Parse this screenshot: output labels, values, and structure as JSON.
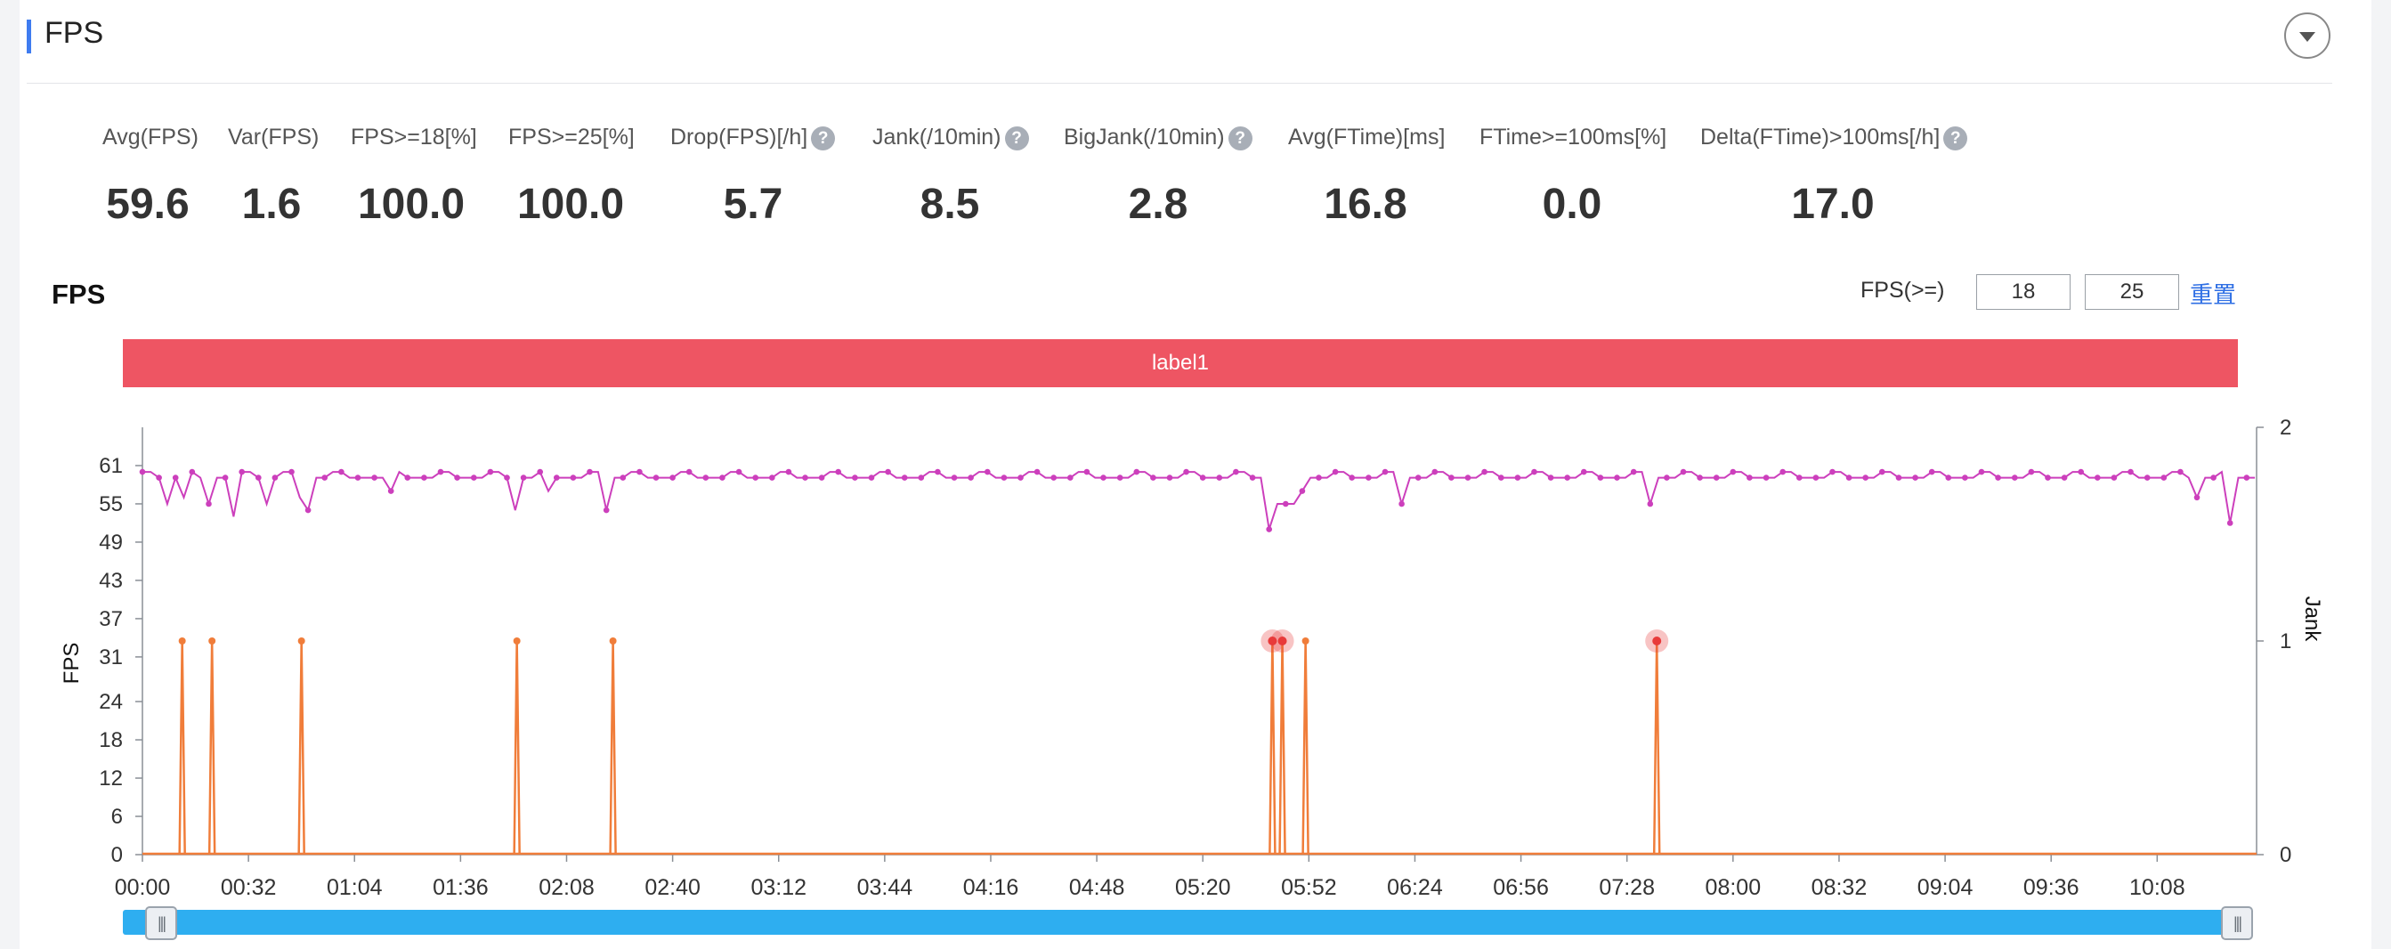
{
  "section": {
    "title": "FPS"
  },
  "stats": [
    {
      "label": "Avg(FPS)",
      "value": "59.6",
      "help": false
    },
    {
      "label": "Var(FPS)",
      "value": "1.6",
      "help": false
    },
    {
      "label": "FPS>=18[%]",
      "value": "100.0",
      "help": false
    },
    {
      "label": "FPS>=25[%]",
      "value": "100.0",
      "help": false
    },
    {
      "label": "Drop(FPS)[/h]",
      "value": "5.7",
      "help": true
    },
    {
      "label": "Jank(/10min)",
      "value": "8.5",
      "help": true
    },
    {
      "label": "BigJank(/10min)",
      "value": "2.8",
      "help": true
    },
    {
      "label": "Avg(FTime)[ms]",
      "value": "16.8",
      "help": false
    },
    {
      "label": "FTime>=100ms[%]",
      "value": "0.0",
      "help": false
    },
    {
      "label": "Delta(FTime)>100ms[/h]",
      "value": "17.0",
      "help": true
    }
  ],
  "chart_controls": {
    "title": "FPS",
    "threshold_label": "FPS(>=)",
    "threshold_1": "18",
    "threshold_2": "25",
    "reset_label": "重置"
  },
  "label_band": {
    "text": "label1",
    "color": "#ee5563"
  },
  "chart_data": {
    "type": "line",
    "x_ticks": [
      "00:00",
      "00:32",
      "01:04",
      "01:36",
      "02:08",
      "02:40",
      "03:12",
      "03:44",
      "04:16",
      "04:48",
      "05:20",
      "05:52",
      "06:24",
      "06:56",
      "07:28",
      "08:00",
      "08:32",
      "09:04",
      "09:36",
      "10:08"
    ],
    "y_left_label": "FPS",
    "y_left_ticks": [
      "0",
      "6",
      "12",
      "18",
      "24",
      "31",
      "37",
      "43",
      "49",
      "55",
      "61"
    ],
    "y_right_label": "Jank",
    "y_right_ticks": [
      "0",
      "1",
      "2"
    ],
    "x_range": [
      "00:00",
      "10:38"
    ],
    "y_left_range": [
      0,
      67
    ],
    "y_right_range": [
      0,
      2
    ],
    "series": [
      {
        "name": "FPS",
        "color": "#cc3fbc",
        "style": "line-with-points",
        "baseline": 60,
        "dips": [
          {
            "t": "00:08",
            "v": 55
          },
          {
            "t": "00:13",
            "v": 56
          },
          {
            "t": "00:20",
            "v": 55
          },
          {
            "t": "00:28",
            "v": 53
          },
          {
            "t": "00:38",
            "v": 55
          },
          {
            "t": "00:48",
            "v": 56
          },
          {
            "t": "00:50",
            "v": 54
          },
          {
            "t": "01:15",
            "v": 57
          },
          {
            "t": "01:52",
            "v": 54
          },
          {
            "t": "02:02",
            "v": 57
          },
          {
            "t": "02:20",
            "v": 54
          },
          {
            "t": "05:41",
            "v": 51
          },
          {
            "t": "05:44",
            "v": 55
          },
          {
            "t": "05:47",
            "v": 55
          },
          {
            "t": "05:50",
            "v": 57
          },
          {
            "t": "06:20",
            "v": 55
          },
          {
            "t": "07:35",
            "v": 55
          },
          {
            "t": "10:19",
            "v": 56
          },
          {
            "t": "10:30",
            "v": 52
          }
        ]
      },
      {
        "name": "Jank",
        "color": "#f07d3a",
        "style": "spikes",
        "axis": "right",
        "events": [
          {
            "t": "00:12",
            "v": 1,
            "highlighted": false
          },
          {
            "t": "00:21",
            "v": 1,
            "highlighted": false
          },
          {
            "t": "00:48",
            "v": 1,
            "highlighted": false
          },
          {
            "t": "01:53",
            "v": 1,
            "highlighted": false
          },
          {
            "t": "02:22",
            "v": 1,
            "highlighted": false
          },
          {
            "t": "05:41",
            "v": 1,
            "highlighted": true
          },
          {
            "t": "05:44",
            "v": 1,
            "highlighted": true
          },
          {
            "t": "05:51",
            "v": 1,
            "highlighted": false
          },
          {
            "t": "07:37",
            "v": 1,
            "highlighted": true
          }
        ]
      }
    ]
  },
  "colors": {
    "fps_line": "#cc3fbc",
    "jank_line": "#f07d3a",
    "jank_highlight": "#e83a3a",
    "label_band": "#ee5563",
    "slider": "#2eaef0",
    "accent": "#3f7cf0",
    "link": "#2f6fe4"
  },
  "slider": {
    "left_handle_icon": "grip-icon",
    "right_handle_icon": "grip-icon"
  },
  "icons": {
    "toggle": "chevron-down-icon",
    "help": "question-circle-icon"
  }
}
